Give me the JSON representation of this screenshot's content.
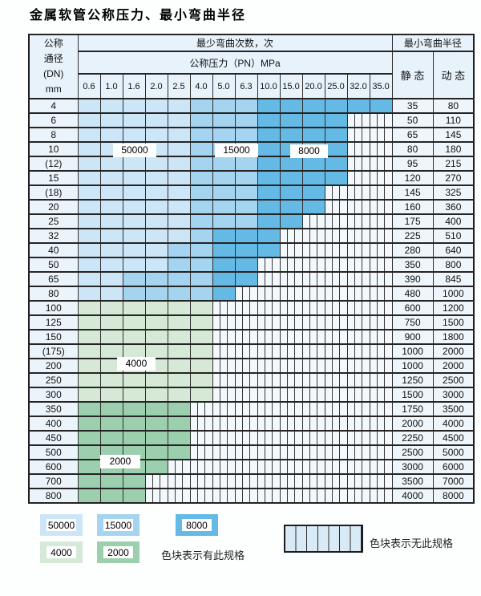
{
  "title": "金属软管公称压力、最小弯曲半径",
  "table": {
    "dn_header_lines": [
      "公称",
      "通径",
      "(DN)",
      "mm"
    ],
    "cycles_header": "最少弯曲次数，次",
    "pressure_header": "公称压力（PN）MPa",
    "radius_header": "最小弯曲半径",
    "static_header": "静 态",
    "dynamic_header": "动 态",
    "pressure_columns": [
      "0.6",
      "1.0",
      "1.6",
      "2.0",
      "2.5",
      "4.0",
      "5.0",
      "6.3",
      "10.0",
      "15.0",
      "20.0",
      "25.0",
      "32.0",
      "35.0"
    ],
    "cell_legend": {
      "b1": "50000次",
      "b2": "15000次",
      "b3": "8000次",
      "g1": "4000次",
      "g2": "2000次",
      "x": "无此规格"
    },
    "rows": [
      {
        "dn": "4",
        "cells": [
          "b1",
          "b1",
          "b1",
          "b1",
          "b1",
          "b2",
          "b2",
          "b2",
          "b3",
          "b3",
          "b3",
          "b3",
          "b3",
          "b3"
        ],
        "static": "35",
        "dynamic": "80"
      },
      {
        "dn": "6",
        "cells": [
          "b1",
          "b1",
          "b1",
          "b1",
          "b1",
          "b2",
          "b2",
          "b2",
          "b3",
          "b3",
          "b3",
          "b3",
          "x",
          "x"
        ],
        "static": "50",
        "dynamic": "110"
      },
      {
        "dn": "8",
        "cells": [
          "b1",
          "b1",
          "b1",
          "b1",
          "b1",
          "b2",
          "b2",
          "b2",
          "b3",
          "b3",
          "b3",
          "b3",
          "x",
          "x"
        ],
        "static": "65",
        "dynamic": "145"
      },
      {
        "dn": "10",
        "cells": [
          "b1",
          "b1",
          "b1",
          "b1",
          "b1",
          "b2",
          "b2",
          "b2",
          "b3",
          "b3",
          "b3",
          "b3",
          "x",
          "x"
        ],
        "static": "80",
        "dynamic": "180"
      },
      {
        "dn": "(12)",
        "cells": [
          "b1",
          "b1",
          "b1",
          "b1",
          "b1",
          "b2",
          "b2",
          "b2",
          "b3",
          "b3",
          "b3",
          "b3",
          "x",
          "x"
        ],
        "static": "95",
        "dynamic": "215"
      },
      {
        "dn": "15",
        "cells": [
          "b1",
          "b1",
          "b1",
          "b1",
          "b1",
          "b2",
          "b2",
          "b2",
          "b3",
          "b3",
          "b3",
          "b3",
          "x",
          "x"
        ],
        "static": "120",
        "dynamic": "270"
      },
      {
        "dn": "(18)",
        "cells": [
          "b1",
          "b1",
          "b1",
          "b1",
          "b1",
          "b2",
          "b2",
          "b2",
          "b3",
          "b3",
          "b3",
          "x",
          "x",
          "x"
        ],
        "static": "145",
        "dynamic": "325"
      },
      {
        "dn": "20",
        "cells": [
          "b1",
          "b1",
          "b1",
          "b1",
          "b1",
          "b2",
          "b2",
          "b2",
          "b3",
          "b3",
          "b3",
          "x",
          "x",
          "x"
        ],
        "static": "160",
        "dynamic": "360"
      },
      {
        "dn": "25",
        "cells": [
          "b1",
          "b1",
          "b1",
          "b1",
          "b1",
          "b2",
          "b2",
          "b2",
          "b3",
          "b3",
          "x",
          "x",
          "x",
          "x"
        ],
        "static": "175",
        "dynamic": "400"
      },
      {
        "dn": "32",
        "cells": [
          "b1",
          "b1",
          "b1",
          "b1",
          "b1",
          "b2",
          "b3",
          "b3",
          "b3",
          "x",
          "x",
          "x",
          "x",
          "x"
        ],
        "static": "225",
        "dynamic": "510"
      },
      {
        "dn": "40",
        "cells": [
          "b1",
          "b1",
          "b1",
          "b1",
          "b2",
          "b2",
          "b3",
          "b3",
          "b3",
          "x",
          "x",
          "x",
          "x",
          "x"
        ],
        "static": "280",
        "dynamic": "640"
      },
      {
        "dn": "50",
        "cells": [
          "b1",
          "b1",
          "b1",
          "b1",
          "b2",
          "b2",
          "b3",
          "b3",
          "x",
          "x",
          "x",
          "x",
          "x",
          "x"
        ],
        "static": "350",
        "dynamic": "800"
      },
      {
        "dn": "65",
        "cells": [
          "b1",
          "b1",
          "b2",
          "b2",
          "b2",
          "b2",
          "b3",
          "b3",
          "x",
          "x",
          "x",
          "x",
          "x",
          "x"
        ],
        "static": "390",
        "dynamic": "845"
      },
      {
        "dn": "80",
        "cells": [
          "b1",
          "b1",
          "b2",
          "b2",
          "b2",
          "b2",
          "b3",
          "x",
          "x",
          "x",
          "x",
          "x",
          "x",
          "x"
        ],
        "static": "480",
        "dynamic": "1000"
      },
      {
        "dn": "100",
        "cells": [
          "g1",
          "g1",
          "g1",
          "g1",
          "g1",
          "g1",
          "x",
          "x",
          "x",
          "x",
          "x",
          "x",
          "x",
          "x"
        ],
        "static": "600",
        "dynamic": "1200"
      },
      {
        "dn": "125",
        "cells": [
          "g1",
          "g1",
          "g1",
          "g1",
          "g1",
          "g1",
          "x",
          "x",
          "x",
          "x",
          "x",
          "x",
          "x",
          "x"
        ],
        "static": "750",
        "dynamic": "1500"
      },
      {
        "dn": "150",
        "cells": [
          "g1",
          "g1",
          "g1",
          "g1",
          "g1",
          "g1",
          "x",
          "x",
          "x",
          "x",
          "x",
          "x",
          "x",
          "x"
        ],
        "static": "900",
        "dynamic": "1800"
      },
      {
        "dn": "(175)",
        "cells": [
          "g1",
          "g1",
          "g1",
          "g1",
          "g1",
          "g1",
          "x",
          "x",
          "x",
          "x",
          "x",
          "x",
          "x",
          "x"
        ],
        "static": "1000",
        "dynamic": "2000"
      },
      {
        "dn": "200",
        "cells": [
          "g1",
          "g1",
          "g1",
          "g1",
          "g1",
          "g1",
          "x",
          "x",
          "x",
          "x",
          "x",
          "x",
          "x",
          "x"
        ],
        "static": "1000",
        "dynamic": "2000"
      },
      {
        "dn": "250",
        "cells": [
          "g1",
          "g1",
          "g1",
          "g1",
          "g1",
          "g1",
          "x",
          "x",
          "x",
          "x",
          "x",
          "x",
          "x",
          "x"
        ],
        "static": "1250",
        "dynamic": "2500"
      },
      {
        "dn": "300",
        "cells": [
          "g1",
          "g1",
          "g1",
          "g1",
          "g1",
          "g1",
          "x",
          "x",
          "x",
          "x",
          "x",
          "x",
          "x",
          "x"
        ],
        "static": "1500",
        "dynamic": "3000"
      },
      {
        "dn": "350",
        "cells": [
          "g2",
          "g2",
          "g2",
          "g2",
          "g2",
          "x",
          "x",
          "x",
          "x",
          "x",
          "x",
          "x",
          "x",
          "x"
        ],
        "static": "1750",
        "dynamic": "3500"
      },
      {
        "dn": "400",
        "cells": [
          "g2",
          "g2",
          "g2",
          "g2",
          "g2",
          "x",
          "x",
          "x",
          "x",
          "x",
          "x",
          "x",
          "x",
          "x"
        ],
        "static": "2000",
        "dynamic": "4000"
      },
      {
        "dn": "450",
        "cells": [
          "g2",
          "g2",
          "g2",
          "g2",
          "g2",
          "x",
          "x",
          "x",
          "x",
          "x",
          "x",
          "x",
          "x",
          "x"
        ],
        "static": "2250",
        "dynamic": "4500"
      },
      {
        "dn": "500",
        "cells": [
          "g2",
          "g2",
          "g2",
          "g2",
          "g2",
          "x",
          "x",
          "x",
          "x",
          "x",
          "x",
          "x",
          "x",
          "x"
        ],
        "static": "2500",
        "dynamic": "5000"
      },
      {
        "dn": "600",
        "cells": [
          "g2",
          "g2",
          "g2",
          "g2",
          "x",
          "x",
          "x",
          "x",
          "x",
          "x",
          "x",
          "x",
          "x",
          "x"
        ],
        "static": "3000",
        "dynamic": "6000"
      },
      {
        "dn": "700",
        "cells": [
          "g2",
          "g2",
          "g2",
          "x",
          "x",
          "x",
          "x",
          "x",
          "x",
          "x",
          "x",
          "x",
          "x",
          "x"
        ],
        "static": "3500",
        "dynamic": "7000"
      },
      {
        "dn": "800",
        "cells": [
          "g2",
          "g2",
          "g2",
          "x",
          "x",
          "x",
          "x",
          "x",
          "x",
          "x",
          "x",
          "x",
          "x",
          "x"
        ],
        "static": "4000",
        "dynamic": "8000"
      }
    ]
  },
  "overlays": [
    {
      "text": "50000"
    },
    {
      "text": "15000"
    },
    {
      "text": "8000"
    },
    {
      "text": "4000"
    },
    {
      "text": "2000"
    }
  ],
  "legend": {
    "swatches": [
      {
        "label": "50000",
        "color": "#cde6f7"
      },
      {
        "label": "15000",
        "color": "#a4d4f0"
      },
      {
        "label": "8000",
        "color": "#64b9e5"
      },
      {
        "label": "4000",
        "color": "#d6e9d7"
      },
      {
        "label": "2000",
        "color": "#9ccfae"
      }
    ],
    "has_spec_note": "色块表示有此规格",
    "no_spec_note": "色块表示无此规格"
  },
  "colors": {
    "hatch_bg": "#f2f8fc",
    "header_bg": "#e7f2fa",
    "grid_line": "#2e2e2e"
  }
}
